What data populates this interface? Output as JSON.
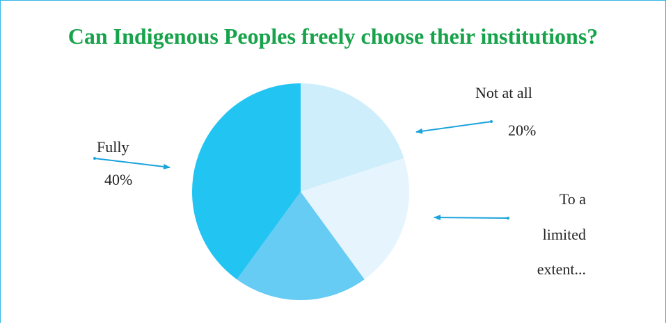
{
  "title": "Can Indigenous Peoples freely choose their institutions?",
  "colors": {
    "title": "#16a34a",
    "frame": "#34b6e6",
    "arrow": "#1aa3dc",
    "slices": [
      "#cfeefc",
      "#e6f5fd",
      "#66ccf4",
      "#22c4f2"
    ]
  },
  "chart_data": {
    "type": "pie",
    "title": "Can Indigenous Peoples freely choose their institutions?",
    "slices": [
      {
        "label": "Not at all",
        "value": 20,
        "value_label": "20%"
      },
      {
        "label": "To a limited extent...",
        "value": 20,
        "value_label": ""
      },
      {
        "label": "",
        "value": 20,
        "value_label": ""
      },
      {
        "label": "Fully",
        "value": 40,
        "value_label": "40%"
      }
    ],
    "start_angle_deg": 0,
    "direction": "clockwise"
  },
  "labels": {
    "fully": "Fully",
    "fully_pct": "40%",
    "not_at_all": "Not at all",
    "not_at_all_pct": "20%",
    "limited_line1": "To a",
    "limited_line2": "limited",
    "limited_line3": "extent..."
  }
}
